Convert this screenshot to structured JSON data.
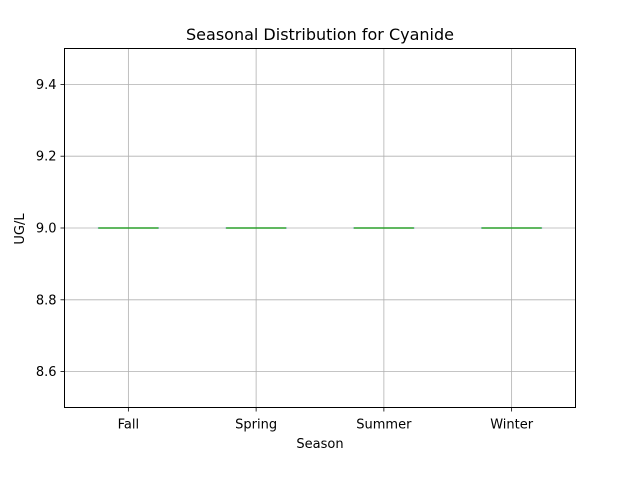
{
  "chart_data": {
    "type": "box",
    "title": "Seasonal Distribution for Cyanide",
    "xlabel": "Season",
    "ylabel": "UG/L",
    "categories": [
      "Fall",
      "Spring",
      "Summer",
      "Winter"
    ],
    "series": [
      {
        "values": [
          {
            "min": 9.0,
            "q1": 9.0,
            "median": 9.0,
            "q3": 9.0,
            "max": 9.0
          },
          {
            "min": 9.0,
            "q1": 9.0,
            "median": 9.0,
            "q3": 9.0,
            "max": 9.0
          },
          {
            "min": 9.0,
            "q1": 9.0,
            "median": 9.0,
            "q3": 9.0,
            "max": 9.0
          },
          {
            "min": 9.0,
            "q1": 9.0,
            "median": 9.0,
            "q3": 9.0,
            "max": 9.0
          }
        ]
      }
    ],
    "ylim": [
      8.5,
      9.5
    ],
    "yticks": [
      8.6,
      8.8,
      9.0,
      9.2,
      9.4
    ],
    "ytick_labels": [
      "8.6",
      "8.8",
      "9.0",
      "9.2",
      "9.4"
    ],
    "grid": true,
    "legend": "none",
    "colors": {
      "box": "#1f77b4",
      "median": "#2ca02c",
      "grid": "#b0b0b0",
      "axes": "#000000"
    }
  }
}
